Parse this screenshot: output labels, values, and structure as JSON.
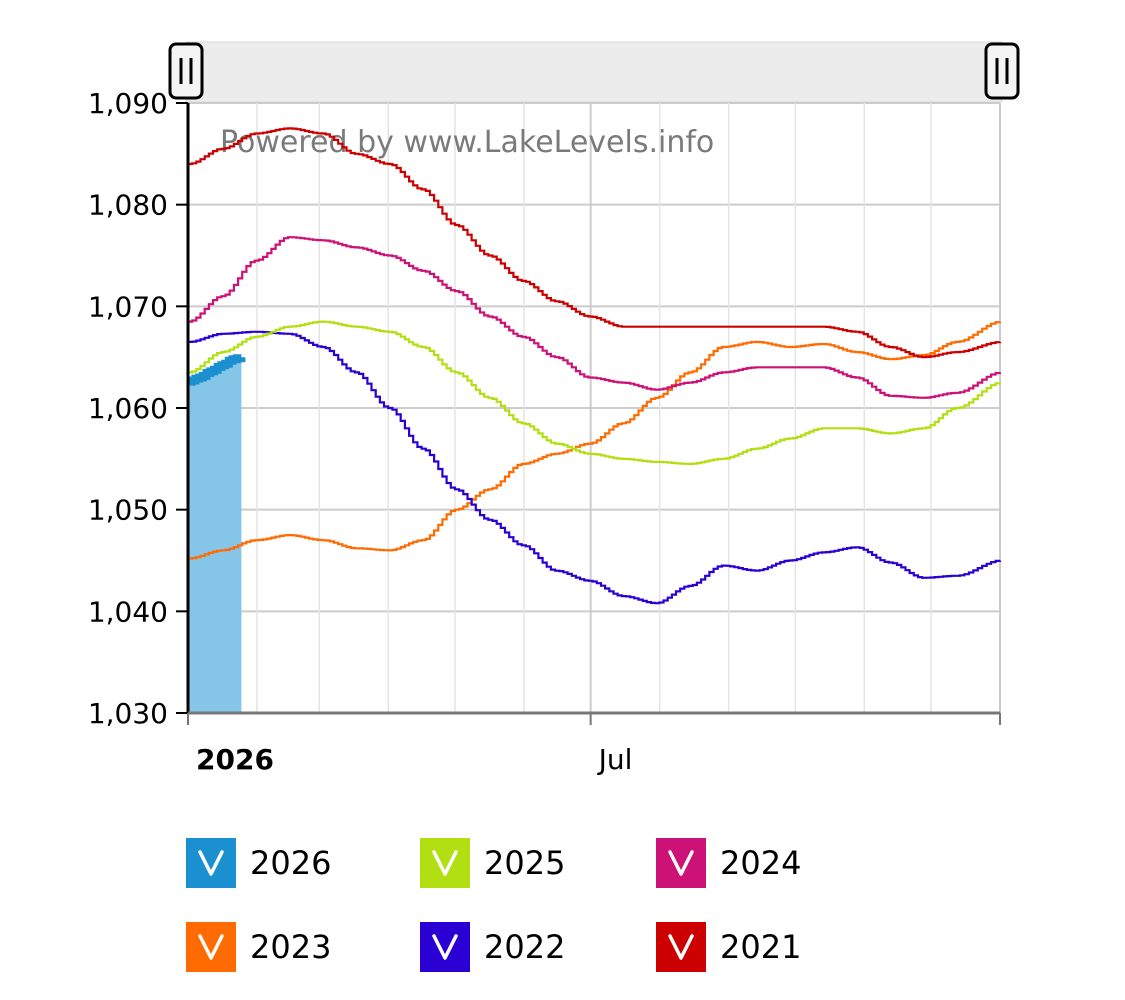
{
  "watermark": "Powered by www.LakeLevels.info",
  "chart_data": {
    "type": "area",
    "x_tick_labels": [
      {
        "label": "2026",
        "day": 0,
        "bold": true
      },
      {
        "label": "Jul",
        "day": 181,
        "bold": false
      }
    ],
    "x_range_days": [
      0,
      365
    ],
    "ylim": [
      1030,
      1090
    ],
    "y_ticks": [
      {
        "value": 1030,
        "label": "1,030"
      },
      {
        "value": 1040,
        "label": "1,040"
      },
      {
        "value": 1050,
        "label": "1,050"
      },
      {
        "value": 1060,
        "label": "1,060"
      },
      {
        "value": 1070,
        "label": "1,070"
      },
      {
        "value": 1080,
        "label": "1,080"
      },
      {
        "value": 1090,
        "label": "1,090"
      }
    ],
    "grid": true,
    "legend_position": "bottom",
    "series": [
      {
        "name": "2026",
        "color": "#1a90d0",
        "fill": "#85c6e8",
        "style": "area",
        "x": [
          0,
          5,
          10,
          15,
          20,
          24
        ],
        "y": [
          1062.6,
          1063.0,
          1063.6,
          1064.2,
          1064.8,
          1065.0
        ]
      },
      {
        "name": "2025",
        "color": "#b2df11",
        "x": [
          0,
          15,
          30,
          45,
          60,
          75,
          90,
          105,
          120,
          135,
          150,
          165,
          180,
          195,
          210,
          225,
          240,
          255,
          270,
          285,
          300,
          315,
          330,
          345,
          365
        ],
        "y": [
          1063.5,
          1065.5,
          1067.0,
          1068.0,
          1068.5,
          1068.0,
          1067.5,
          1066.0,
          1063.5,
          1061.0,
          1058.5,
          1056.5,
          1055.5,
          1055.0,
          1054.7,
          1054.5,
          1055.0,
          1056.0,
          1057.0,
          1058.0,
          1058.0,
          1057.5,
          1058.0,
          1060.0,
          1062.5
        ]
      },
      {
        "name": "2024",
        "color": "#cc1177",
        "x": [
          0,
          15,
          30,
          45,
          60,
          75,
          90,
          105,
          120,
          135,
          150,
          165,
          180,
          195,
          210,
          225,
          240,
          255,
          270,
          285,
          300,
          315,
          330,
          345,
          365
        ],
        "y": [
          1068.5,
          1071.0,
          1074.5,
          1076.8,
          1076.5,
          1075.8,
          1075.0,
          1073.5,
          1071.5,
          1069.0,
          1067.0,
          1065.0,
          1063.0,
          1062.5,
          1061.8,
          1062.5,
          1063.5,
          1064.0,
          1064.0,
          1064.0,
          1063.0,
          1061.2,
          1061.0,
          1061.5,
          1063.5
        ]
      },
      {
        "name": "2023",
        "color": "#ff6b00",
        "x": [
          0,
          15,
          30,
          45,
          60,
          75,
          90,
          105,
          120,
          135,
          150,
          165,
          180,
          195,
          210,
          225,
          240,
          255,
          270,
          285,
          300,
          315,
          330,
          345,
          365
        ],
        "y": [
          1045.2,
          1046.0,
          1047.0,
          1047.5,
          1047.0,
          1046.2,
          1046.0,
          1047.0,
          1050.0,
          1052.0,
          1054.5,
          1055.5,
          1056.5,
          1058.5,
          1061.0,
          1063.5,
          1066.0,
          1066.5,
          1066.0,
          1066.3,
          1065.5,
          1064.8,
          1065.2,
          1066.5,
          1068.5
        ]
      },
      {
        "name": "2022",
        "color": "#2a00d4",
        "x": [
          0,
          15,
          30,
          45,
          60,
          75,
          90,
          105,
          120,
          135,
          150,
          165,
          180,
          195,
          210,
          225,
          240,
          255,
          270,
          285,
          300,
          315,
          330,
          345,
          365
        ],
        "y": [
          1066.5,
          1067.3,
          1067.5,
          1067.3,
          1066.0,
          1063.5,
          1060.0,
          1056.0,
          1052.0,
          1049.0,
          1046.5,
          1044.0,
          1043.0,
          1041.5,
          1040.8,
          1042.5,
          1044.5,
          1044.0,
          1045.0,
          1045.8,
          1046.3,
          1044.8,
          1043.3,
          1043.5,
          1045.0
        ]
      },
      {
        "name": "2021",
        "color": "#cc0000",
        "x": [
          0,
          15,
          30,
          45,
          60,
          75,
          90,
          105,
          120,
          135,
          150,
          165,
          180,
          195,
          210,
          225,
          240,
          255,
          270,
          285,
          300,
          315,
          330,
          345,
          365
        ],
        "y": [
          1084.0,
          1085.5,
          1087.0,
          1087.5,
          1087.0,
          1085.0,
          1084.0,
          1081.5,
          1078.0,
          1075.0,
          1072.5,
          1070.5,
          1069.0,
          1068.0,
          1068.0,
          1068.0,
          1068.0,
          1068.0,
          1068.0,
          1068.0,
          1067.5,
          1066.0,
          1065.0,
          1065.5,
          1066.5
        ]
      }
    ]
  },
  "legend": [
    {
      "label": "2026",
      "color": "#1a90d0"
    },
    {
      "label": "2025",
      "color": "#b2df11"
    },
    {
      "label": "2024",
      "color": "#cc1177"
    },
    {
      "label": "2023",
      "color": "#ff6b00"
    },
    {
      "label": "2022",
      "color": "#2a00d4"
    },
    {
      "label": "2021",
      "color": "#cc0000"
    }
  ]
}
